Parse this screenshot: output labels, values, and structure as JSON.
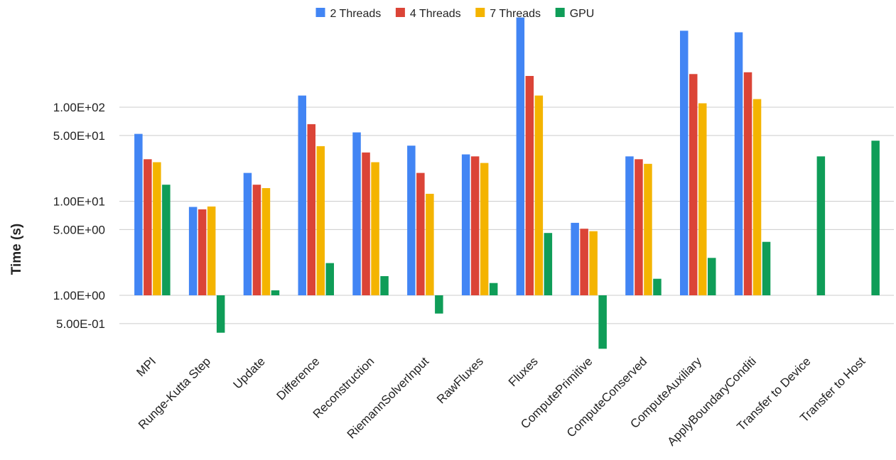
{
  "chart_data": {
    "type": "bar",
    "title": "",
    "xlabel": "",
    "ylabel": "Time (s)",
    "yscale": "log",
    "ylim": [
      0.3,
      1000
    ],
    "baseline": 1.0,
    "grid": true,
    "legend_position": "top",
    "y_ticks": [
      {
        "value": 0.5,
        "label": "5.00E-01"
      },
      {
        "value": 1,
        "label": "1.00E+00"
      },
      {
        "value": 5,
        "label": "5.00E+00"
      },
      {
        "value": 10,
        "label": "1.00E+01"
      },
      {
        "value": 50,
        "label": "5.00E+01"
      },
      {
        "value": 100,
        "label": "1.00E+02"
      }
    ],
    "categories": [
      "MPI",
      "Runge-Kutta Step",
      "Update",
      "Difference",
      "Reconstruction",
      "RiemannSolverInput",
      "RawFluxes",
      "Fluxes",
      "ComputePrimitive",
      "ComputeConserved",
      "ComputeAuxiliary",
      "ApplyBoundaryConditi",
      "Transfer to Device",
      "Transfer to Host"
    ],
    "series": [
      {
        "name": "2 Threads",
        "color": "#4285F4",
        "values": [
          52,
          8.7,
          20,
          133,
          54,
          39,
          31.5,
          900,
          5.9,
          30,
          650,
          625,
          null,
          null
        ]
      },
      {
        "name": "4 Threads",
        "color": "#DB4437",
        "values": [
          28,
          8.2,
          15,
          66,
          33,
          20,
          30,
          215,
          5.1,
          28,
          225,
          235,
          null,
          null
        ]
      },
      {
        "name": "7 Threads",
        "color": "#F4B400",
        "values": [
          26,
          8.8,
          13.8,
          38.5,
          26,
          12,
          25.5,
          133,
          4.8,
          25,
          110,
          122,
          null,
          null
        ]
      },
      {
        "name": "GPU",
        "color": "#0F9D58",
        "values": [
          15,
          0.4,
          1.13,
          2.2,
          1.6,
          0.64,
          1.35,
          4.6,
          0.27,
          1.5,
          2.5,
          3.7,
          30,
          44
        ]
      }
    ]
  }
}
